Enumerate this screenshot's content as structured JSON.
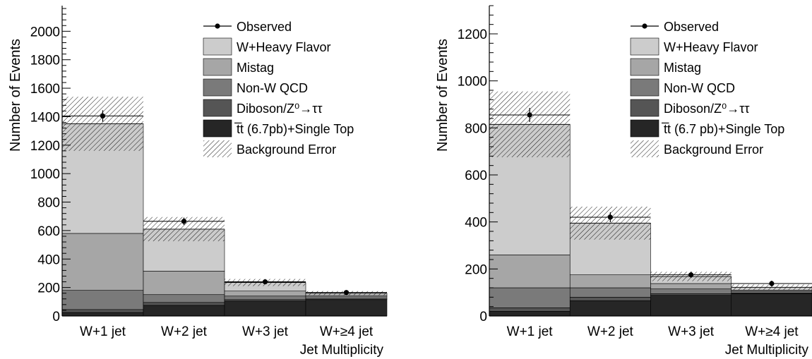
{
  "chart_data": [
    {
      "type": "bar",
      "stacked": true,
      "xlabel": "Jet Multiplicity",
      "ylabel": "Number of Events",
      "ylim": [
        0,
        2180
      ],
      "yticks": [
        0,
        200,
        400,
        600,
        800,
        1000,
        1200,
        1400,
        1600,
        1800,
        2000
      ],
      "categories": [
        "W+1 jet",
        "W+2 jet",
        "W+3 jet",
        "W+≥4 jet"
      ],
      "series": [
        {
          "name": "t̅t (6.7pb)+Single Top",
          "color": "#262626",
          "values": [
            25,
            75,
            105,
            115
          ]
        },
        {
          "name": "Diboson/Z⁰→ττ",
          "color": "#555555",
          "values": [
            20,
            20,
            10,
            5
          ]
        },
        {
          "name": "Non-W QCD",
          "color": "#7a7a7a",
          "values": [
            135,
            55,
            25,
            15
          ]
        },
        {
          "name": "Mistag",
          "color": "#a6a6a6",
          "values": [
            400,
            165,
            35,
            10
          ]
        },
        {
          "name": "W+Heavy Flavor",
          "color": "#cccccc",
          "values": [
            770,
            295,
            60,
            15
          ]
        }
      ],
      "observed": {
        "name": "Observed",
        "values": [
          1405,
          665,
          240,
          165
        ],
        "errors": [
          40,
          26,
          16,
          13
        ]
      },
      "background_error": {
        "name": "Background Error",
        "values": [
          190,
          85,
          25,
          15
        ]
      }
    },
    {
      "type": "bar",
      "stacked": true,
      "xlabel": "Jet Multiplicity",
      "ylabel": "Number of Events",
      "ylim": [
        0,
        1320
      ],
      "yticks": [
        0,
        200,
        400,
        600,
        800,
        1000,
        1200
      ],
      "categories": [
        "W+1 jet",
        "W+2 jet",
        "W+3 jet",
        "W+≥4 jet"
      ],
      "series": [
        {
          "name": "t̅t (6.7 pb)+Single Top",
          "color": "#262626",
          "values": [
            20,
            65,
            88,
            95
          ]
        },
        {
          "name": "Diboson/Z⁰→ττ",
          "color": "#555555",
          "values": [
            15,
            15,
            7,
            3
          ]
        },
        {
          "name": "Non-W QCD",
          "color": "#7a7a7a",
          "values": [
            85,
            40,
            20,
            7
          ]
        },
        {
          "name": "Mistag",
          "color": "#a6a6a6",
          "values": [
            140,
            55,
            23,
            5
          ]
        },
        {
          "name": "W+Heavy Flavor",
          "color": "#cccccc",
          "values": [
            555,
            220,
            30,
            12
          ]
        }
      ],
      "observed": {
        "name": "Observed",
        "values": [
          855,
          420,
          175,
          138
        ],
        "errors": [
          30,
          21,
          13,
          12
        ]
      },
      "background_error": {
        "name": "Background Error",
        "values": [
          140,
          70,
          20,
          12
        ]
      }
    }
  ]
}
